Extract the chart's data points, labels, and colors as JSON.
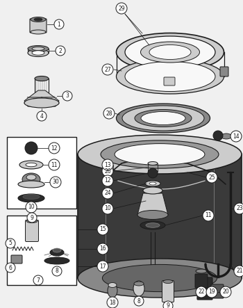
{
  "bg_color": "#f0f0f0",
  "line_color": "#1a1a1a",
  "dark_fill": "#2a2a2a",
  "mid_fill": "#888888",
  "light_fill": "#cccccc",
  "white_fill": "#f8f8f8",
  "figsize": [
    3.5,
    4.43
  ],
  "dpi": 100
}
